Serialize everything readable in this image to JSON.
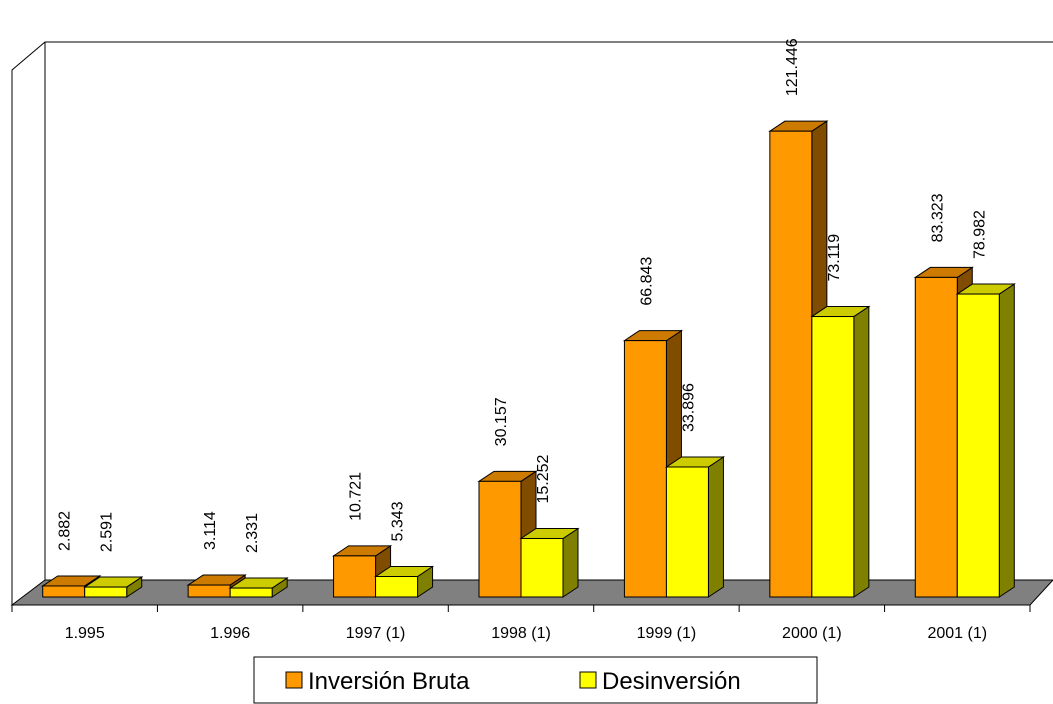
{
  "chart_data": {
    "type": "bar3d",
    "categories": [
      "1.995",
      "1.996",
      "1997 (1)",
      "1998 (1)",
      "1999 (1)",
      "2000  (1)",
      "2001 (1)"
    ],
    "series": [
      {
        "name": "Inversión Bruta",
        "color": "#ff9900",
        "values": [
          2.882,
          3.114,
          10.721,
          30.157,
          66.843,
          121.446,
          83.323
        ]
      },
      {
        "name": "Desinversión",
        "color": "#ffff00",
        "values": [
          2.591,
          2.331,
          5.343,
          15.252,
          33.896,
          73.119,
          78.982
        ]
      }
    ],
    "ylim": [
      0,
      140
    ]
  }
}
